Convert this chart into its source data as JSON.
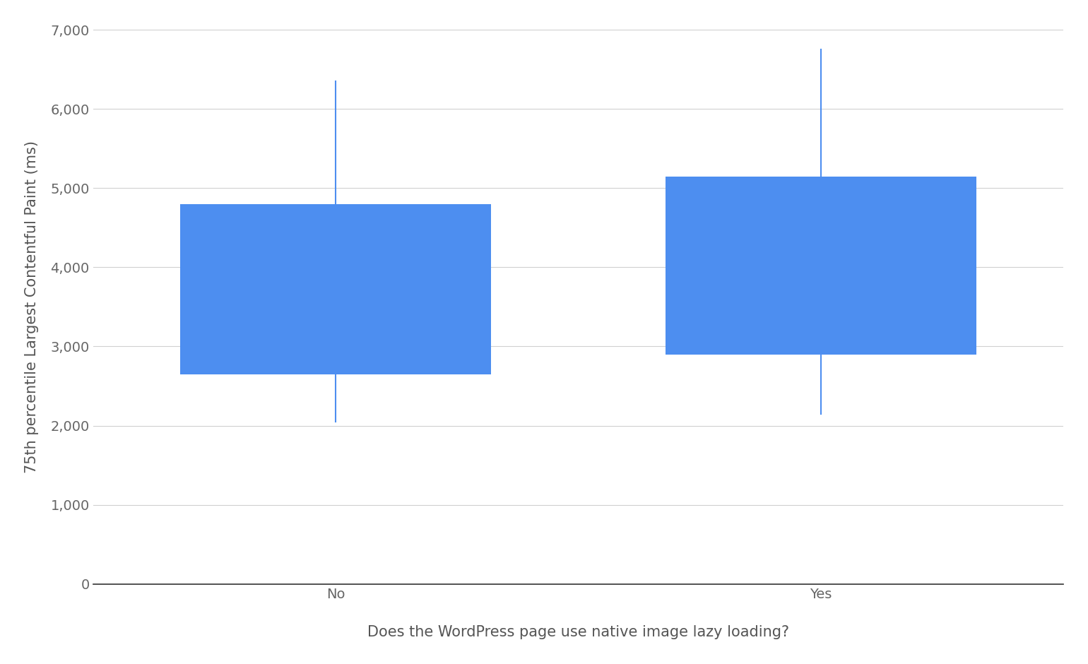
{
  "categories": [
    "No",
    "Yes"
  ],
  "p10": [
    2050,
    2150
  ],
  "p25": [
    2650,
    2900
  ],
  "p75": [
    4800,
    5150
  ],
  "p90": [
    6350,
    6750
  ],
  "box_color": "#4d8ef0",
  "whisker_color": "#4d8ef0",
  "background_color": "#ffffff",
  "ylabel": "75th percentile Largest Contentful Paint (ms)",
  "xlabel": "Does the WordPress page use native image lazy loading?",
  "ylim": [
    0,
    7000
  ],
  "yticks": [
    0,
    1000,
    2000,
    3000,
    4000,
    5000,
    6000,
    7000
  ],
  "ytick_labels": [
    "0",
    "1,000",
    "2,000",
    "3,000",
    "4,000",
    "5,000",
    "6,000",
    "7,000"
  ],
  "grid_color": "#d0d0d0",
  "label_fontsize": 15,
  "tick_fontsize": 14,
  "box_width": 0.32,
  "whisker_linewidth": 1.5,
  "x_positions": [
    0.25,
    0.75
  ],
  "xlim": [
    0.0,
    1.0
  ]
}
